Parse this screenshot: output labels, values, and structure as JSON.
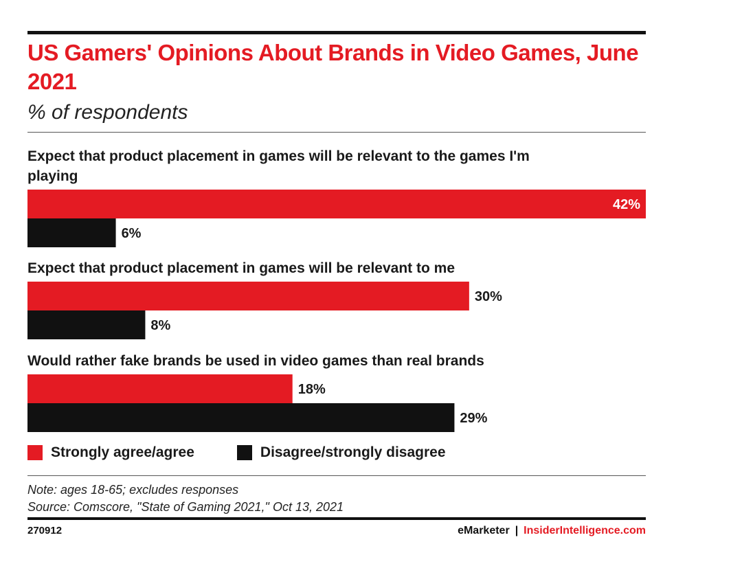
{
  "colors": {
    "agree": "#e41b23",
    "disagree": "#111111",
    "label_inside": "#ffffff",
    "label_outside": "#1a1a1a"
  },
  "chart_data": {
    "type": "bar",
    "orientation": "horizontal",
    "title": "US Gamers' Opinions About Brands in Video Games, June 2021",
    "subtitle": "% of respondents",
    "unit": "%",
    "xlim": [
      0,
      42
    ],
    "grid": false,
    "legend_placement": "bottom-left",
    "categories": [
      "Expect that product placement in games will be relevant to the games I'm playing",
      "Expect that product placement in games will be relevant to me",
      "Would rather fake brands be used in video games than real brands"
    ],
    "series": [
      {
        "name": "Strongly agree/agree",
        "values": [
          42,
          30,
          18
        ],
        "labels": [
          "42%",
          "30%",
          "18%"
        ]
      },
      {
        "name": "Disagree/strongly disagree",
        "values": [
          6,
          8,
          29
        ],
        "labels": [
          "6%",
          "8%",
          "29%"
        ]
      }
    ]
  },
  "footer": {
    "note": "Note: ages 18-65; excludes responses",
    "source": "Source: Comscore, \"State of Gaming 2021,\" Oct 13, 2021",
    "chart_id": "270912",
    "brand_left": "eMarketer",
    "brand_sep": "|",
    "brand_right": "InsiderIntelligence.com"
  }
}
